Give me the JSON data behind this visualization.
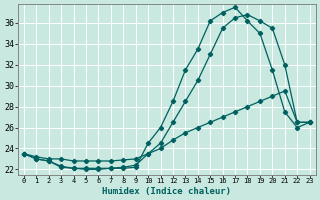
{
  "xlabel": "Humidex (Indice chaleur)",
  "bg_color": "#c8e8e0",
  "line_color": "#006060",
  "grid_color": "#ffffff",
  "xlim": [
    -0.5,
    23.5
  ],
  "ylim": [
    21.5,
    37.8
  ],
  "yticks": [
    22,
    24,
    26,
    28,
    30,
    32,
    34,
    36
  ],
  "xticks": [
    0,
    1,
    2,
    3,
    4,
    5,
    6,
    7,
    8,
    9,
    10,
    11,
    12,
    13,
    14,
    15,
    16,
    17,
    18,
    19,
    20,
    21,
    22,
    23
  ],
  "series1_x": [
    0,
    1,
    2,
    3,
    4,
    5,
    6,
    7,
    8,
    9,
    10,
    11,
    12,
    13,
    14,
    15,
    16,
    17,
    18,
    19,
    20,
    21,
    22,
    23
  ],
  "series1_y": [
    23.5,
    23.0,
    22.8,
    22.2,
    22.1,
    22.0,
    22.0,
    22.1,
    22.1,
    22.2,
    24.5,
    26.0,
    28.5,
    31.5,
    33.5,
    36.2,
    37.0,
    37.5,
    36.2,
    35.0,
    31.5,
    27.5,
    26.0,
    26.5
  ],
  "series2_x": [
    0,
    1,
    2,
    3,
    4,
    5,
    6,
    7,
    8,
    9,
    10,
    11,
    12,
    13,
    14,
    15,
    16,
    17,
    18,
    19,
    20,
    21,
    22,
    23
  ],
  "series2_y": [
    23.5,
    23.0,
    22.8,
    22.3,
    22.1,
    22.1,
    22.1,
    22.1,
    22.2,
    22.4,
    23.5,
    24.5,
    26.5,
    28.5,
    30.5,
    33.0,
    35.5,
    36.5,
    36.8,
    36.2,
    35.5,
    32.0,
    26.5,
    26.5
  ],
  "series3_x": [
    0,
    1,
    2,
    3,
    4,
    5,
    6,
    7,
    8,
    9,
    10,
    11,
    12,
    13,
    14,
    15,
    16,
    17,
    18,
    19,
    20,
    21,
    22,
    23
  ],
  "series3_y": [
    23.5,
    23.2,
    23.0,
    23.0,
    22.8,
    22.8,
    22.8,
    22.8,
    22.9,
    23.0,
    23.5,
    24.0,
    24.8,
    25.5,
    26.0,
    26.5,
    27.0,
    27.5,
    28.0,
    28.5,
    29.0,
    29.5,
    26.5,
    26.5
  ]
}
